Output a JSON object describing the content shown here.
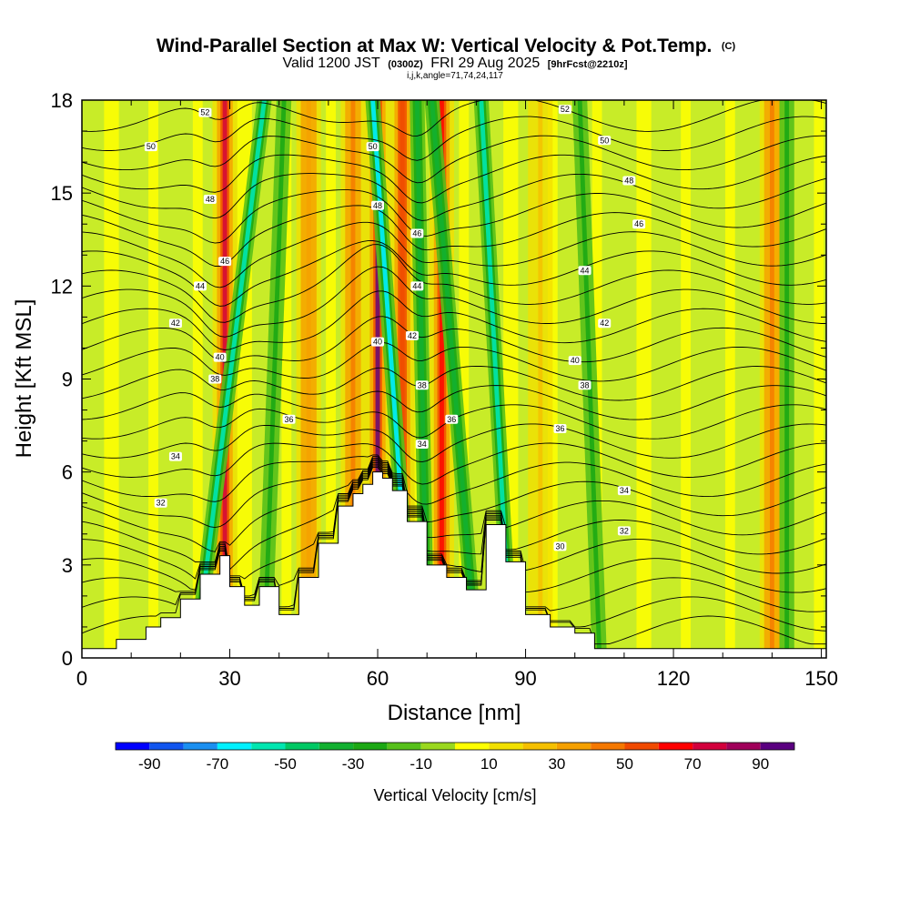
{
  "title": {
    "line1": "Wind-Parallel Section at Max W: Vertical Velocity & Pot.Temp.",
    "line1_unit": "(C)",
    "line2_valid": "Valid 1200 JST",
    "line2_utc": "(0300Z)",
    "line2_date": "FRI 29 Aug 2025",
    "line2_fcst": "[9hrFcst@2210z]",
    "line3": "i,j,k,angle=71,74,24,117"
  },
  "chart_data": {
    "type": "heatmap",
    "title": "Wind-Parallel Section at Max W: Vertical Velocity & Pot.Temp. (C)",
    "xlabel": "Distance [nm]",
    "ylabel": "Height [Kft MSL]",
    "xlim": [
      0,
      151
    ],
    "ylim": [
      0,
      18
    ],
    "xticks": [
      0,
      30,
      60,
      90,
      120,
      150
    ],
    "yticks": [
      0,
      3,
      6,
      9,
      12,
      15,
      18
    ],
    "terrain": {
      "x": [
        0,
        7,
        13,
        16,
        20,
        24,
        28,
        30,
        33,
        36,
        40,
        44,
        48,
        52,
        55,
        57,
        59,
        61,
        63,
        66,
        70,
        74,
        78,
        82,
        86,
        90,
        95,
        100,
        104,
        151
      ],
      "top": [
        0.3,
        0.6,
        1.0,
        1.3,
        1.9,
        2.7,
        3.3,
        2.3,
        1.7,
        2.3,
        1.4,
        2.6,
        3.7,
        4.9,
        5.3,
        5.6,
        6.0,
        5.8,
        5.4,
        4.4,
        3.0,
        2.6,
        2.2,
        4.3,
        3.1,
        1.4,
        1.0,
        0.8,
        0.3,
        0.3
      ]
    },
    "updrafts": [
      {
        "x": 29,
        "value": 70
      },
      {
        "x": 46,
        "value": 30
      },
      {
        "x": 55,
        "value": 40
      },
      {
        "x": 60,
        "value": 90
      },
      {
        "x": 65,
        "value": 50
      },
      {
        "x": 73,
        "value": 60
      },
      {
        "x": 93,
        "value": 20
      },
      {
        "x": 140,
        "value": 40
      }
    ],
    "downdrafts": [
      {
        "x_bottom": 23,
        "x_top": 37,
        "value": -55
      },
      {
        "x_bottom": 37,
        "x_top": 41,
        "value": -25
      },
      {
        "x_bottom": 67,
        "x_top": 59,
        "value": -65
      },
      {
        "x_bottom": 70,
        "x_top": 68,
        "value": -35
      },
      {
        "x_bottom": 80,
        "x_top": 71,
        "value": -40
      },
      {
        "x_bottom": 87,
        "x_top": 81,
        "value": -55
      },
      {
        "x_bottom": 105,
        "x_top": 101,
        "value": -25
      },
      {
        "x_bottom": 143,
        "x_top": 143,
        "value": -25
      }
    ],
    "theta_contours": {
      "unit": "C",
      "levels": [
        30,
        32,
        34,
        36,
        38,
        40,
        42,
        44,
        46,
        48,
        50,
        52
      ],
      "labels": [
        {
          "text": "32",
          "x": 16,
          "y": 5.0
        },
        {
          "text": "34",
          "x": 19,
          "y": 6.5
        },
        {
          "text": "36",
          "x": 42,
          "y": 7.7
        },
        {
          "text": "38",
          "x": 27,
          "y": 9.0
        },
        {
          "text": "40",
          "x": 28,
          "y": 9.7
        },
        {
          "text": "42",
          "x": 19,
          "y": 10.8
        },
        {
          "text": "44",
          "x": 24,
          "y": 12.0
        },
        {
          "text": "46",
          "x": 29,
          "y": 12.8
        },
        {
          "text": "48",
          "x": 26,
          "y": 14.8
        },
        {
          "text": "50",
          "x": 14,
          "y": 16.5
        },
        {
          "text": "52",
          "x": 25,
          "y": 17.6
        },
        {
          "text": "50",
          "x": 59,
          "y": 16.5
        },
        {
          "text": "48",
          "x": 60,
          "y": 14.6
        },
        {
          "text": "46",
          "x": 68,
          "y": 13.7
        },
        {
          "text": "44",
          "x": 68,
          "y": 12.0
        },
        {
          "text": "42",
          "x": 67,
          "y": 10.4
        },
        {
          "text": "40",
          "x": 60,
          "y": 10.2
        },
        {
          "text": "38",
          "x": 69,
          "y": 8.8
        },
        {
          "text": "36",
          "x": 75,
          "y": 7.7
        },
        {
          "text": "34",
          "x": 69,
          "y": 6.9
        },
        {
          "text": "52",
          "x": 98,
          "y": 17.7
        },
        {
          "text": "50",
          "x": 106,
          "y": 16.7
        },
        {
          "text": "48",
          "x": 111,
          "y": 15.4
        },
        {
          "text": "46",
          "x": 113,
          "y": 14.0
        },
        {
          "text": "44",
          "x": 102,
          "y": 12.5
        },
        {
          "text": "42",
          "x": 106,
          "y": 10.8
        },
        {
          "text": "40",
          "x": 100,
          "y": 9.6
        },
        {
          "text": "38",
          "x": 102,
          "y": 8.8
        },
        {
          "text": "36",
          "x": 97,
          "y": 7.4
        },
        {
          "text": "34",
          "x": 110,
          "y": 5.4
        },
        {
          "text": "32",
          "x": 110,
          "y": 4.1
        },
        {
          "text": "30",
          "x": 97,
          "y": 3.6
        }
      ]
    },
    "colorbar": {
      "title": "Vertical Velocity [cm/s]",
      "tick_labels": [
        "-90",
        "-70",
        "-50",
        "-30",
        "-10",
        "10",
        "30",
        "50",
        "70",
        "90"
      ],
      "bins": [
        -100,
        -90,
        -80,
        -70,
        -60,
        -50,
        -40,
        -30,
        -20,
        -10,
        0,
        10,
        20,
        30,
        40,
        50,
        60,
        70,
        80,
        90,
        100
      ],
      "colors": [
        "#0000ff",
        "#1155ee",
        "#1a8ff0",
        "#00f0ff",
        "#00e6b0",
        "#00c864",
        "#12b030",
        "#1ca814",
        "#56c01a",
        "#9ad81e",
        "#ffff00",
        "#f2e000",
        "#f5c000",
        "#f5a000",
        "#f57800",
        "#f04a00",
        "#ff0000",
        "#d2003c",
        "#a0005a",
        "#5a0080"
      ]
    }
  }
}
